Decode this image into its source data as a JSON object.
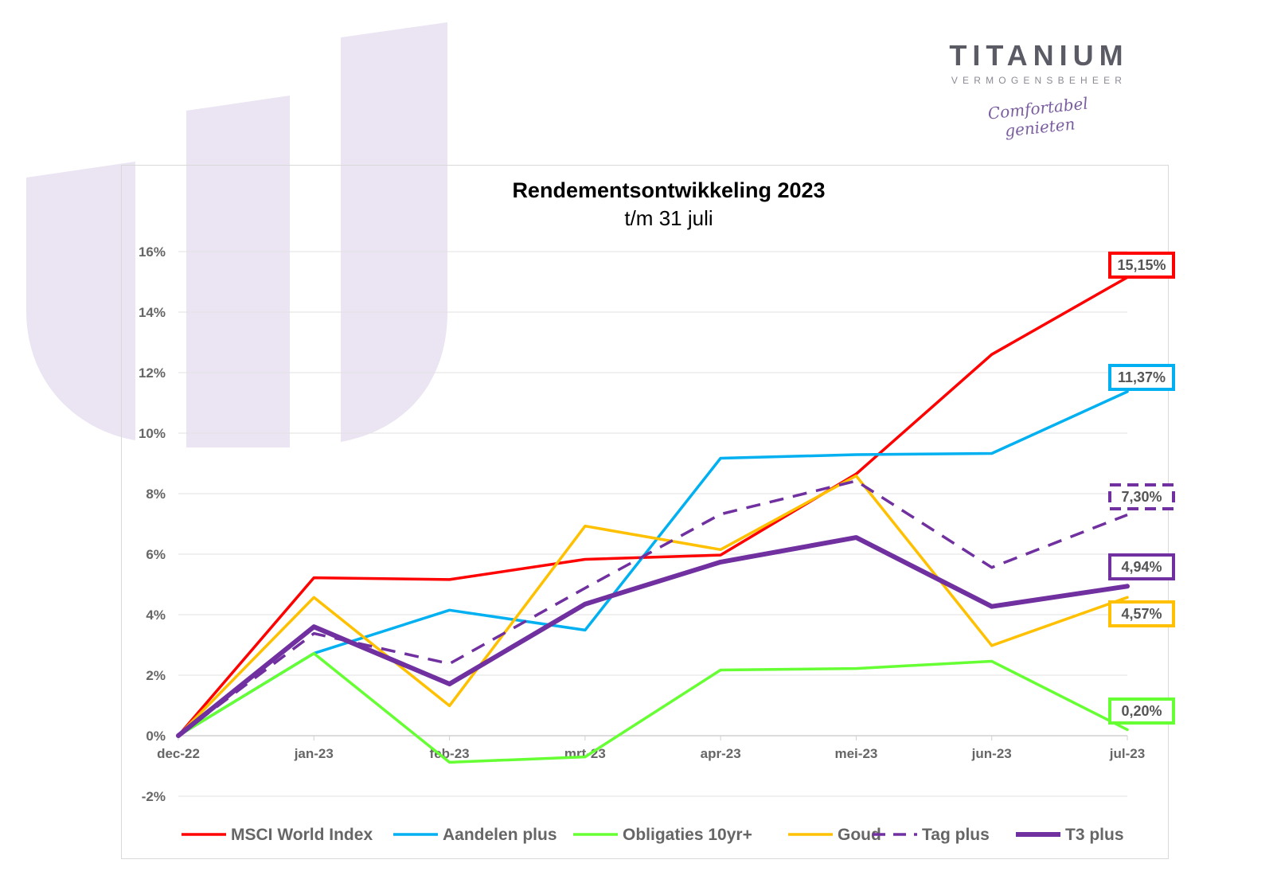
{
  "brand": {
    "name": "TITANIUM",
    "subtitle": "VERMOGENSBEHEER",
    "tagline_line1": "Comfortabel",
    "tagline_line2": "genieten",
    "accent_color": "#7b5ea0",
    "watermark_color": "#ebe4f2"
  },
  "chart_data": {
    "type": "line",
    "title": "Rendementsontwikkeling 2023",
    "subtitle": "t/m 31 juli",
    "x": [
      "dec-22",
      "jan-23",
      "feb-23",
      "mrt-23",
      "apr-23",
      "mei-23",
      "jun-23",
      "jul-23"
    ],
    "yticks": [
      "-2%",
      "0%",
      "2%",
      "4%",
      "6%",
      "8%",
      "10%",
      "12%",
      "14%",
      "16%"
    ],
    "ylim": [
      -2,
      16
    ],
    "grid": true,
    "legend_position": "bottom",
    "series": [
      {
        "name": "MSCI World Index",
        "color": "#ff0000",
        "style": "solid",
        "weight": "normal",
        "values": [
          0,
          5.22,
          5.16,
          5.83,
          5.97,
          8.65,
          12.6,
          15.15
        ],
        "end_label": "15,15%"
      },
      {
        "name": "Aandelen plus",
        "color": "#00b0f0",
        "style": "solid",
        "weight": "normal",
        "values": [
          0,
          2.72,
          4.15,
          3.49,
          9.17,
          9.29,
          9.33,
          11.37
        ],
        "end_label": "11,37%"
      },
      {
        "name": "Obligaties 10yr+",
        "color": "#66ff33",
        "style": "solid",
        "weight": "normal",
        "values": [
          0,
          2.72,
          -0.88,
          -0.7,
          2.17,
          2.22,
          2.46,
          0.2
        ],
        "end_label": "0,20%"
      },
      {
        "name": "Goud",
        "color": "#ffc000",
        "style": "solid",
        "weight": "normal",
        "values": [
          0,
          4.57,
          0.99,
          6.93,
          6.15,
          8.59,
          2.98,
          4.57
        ],
        "end_label": "4,57%"
      },
      {
        "name": "Tag plus",
        "color": "#7030a0",
        "style": "dashed",
        "weight": "normal",
        "values": [
          0,
          3.38,
          2.38,
          4.88,
          7.32,
          8.42,
          5.56,
          7.3
        ],
        "end_label": "7,30%"
      },
      {
        "name": "T3 plus",
        "color": "#7030a0",
        "style": "solid",
        "weight": "bold",
        "values": [
          0,
          3.6,
          1.71,
          4.35,
          5.74,
          6.55,
          4.27,
          4.94
        ],
        "end_label": "4,94%"
      }
    ]
  }
}
